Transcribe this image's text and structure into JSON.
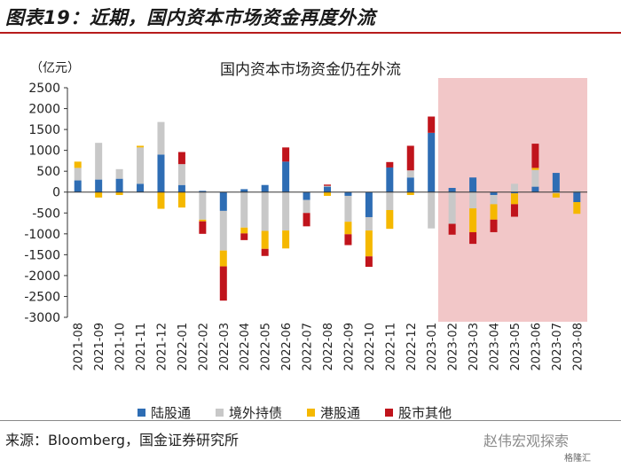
{
  "figure_title": "图表19：近期，国内资本市场资金再度外流",
  "source": "来源：Bloomberg，国金证券研究所",
  "watermark": "赵伟宏观探索",
  "watermark_sub": "格隆汇",
  "colors": {
    "陆股通": "#2e6db4",
    "境外持债": "#c8c8c8",
    "港股通": "#f5b800",
    "股市其他": "#c0141c",
    "highlight": "#f2c7c8",
    "title_rule": "#b71c1c"
  },
  "chart_data": {
    "type": "bar",
    "stacked": true,
    "title": "国内资本市场资金仍在外流",
    "ylabel": "（亿元）",
    "ylim": [
      -3000,
      2500
    ],
    "yticks": [
      2500,
      2000,
      1500,
      1000,
      500,
      0,
      -500,
      -1000,
      -1500,
      -2000,
      -2500,
      -3000
    ],
    "highlight_range": [
      "2023-02",
      "2023-08"
    ],
    "categories": [
      "2021-08",
      "2021-09",
      "2021-10",
      "2021-11",
      "2021-12",
      "2022-01",
      "2022-02",
      "2022-03",
      "2022-04",
      "2022-05",
      "2022-06",
      "2022-07",
      "2022-08",
      "2022-09",
      "2022-10",
      "2022-11",
      "2022-12",
      "2023-01",
      "2023-02",
      "2023-03",
      "2023-04",
      "2023-05",
      "2023-06",
      "2023-07",
      "2023-08"
    ],
    "series": [
      {
        "name": "陆股通",
        "values": [
          280,
          300,
          320,
          200,
          900,
          170,
          30,
          -450,
          70,
          170,
          730,
          -190,
          130,
          -90,
          -600,
          590,
          350,
          1420,
          100,
          350,
          -70,
          -30,
          130,
          460,
          -240
        ]
      },
      {
        "name": "境外持债",
        "values": [
          300,
          880,
          230,
          870,
          780,
          500,
          -660,
          -950,
          -850,
          -930,
          -920,
          -310,
          20,
          -620,
          -320,
          -430,
          170,
          -870,
          -760,
          -390,
          -220,
          200,
          400,
          -30,
          40
        ]
      },
      {
        "name": "港股通",
        "values": [
          150,
          -130,
          -70,
          40,
          -400,
          -370,
          -40,
          -380,
          -140,
          -430,
          -430,
          0,
          -90,
          -300,
          -620,
          -450,
          -70,
          0,
          0,
          -570,
          -370,
          -260,
          50,
          -100,
          -280
        ]
      },
      {
        "name": "股市其他",
        "values": [
          0,
          0,
          0,
          0,
          0,
          290,
          -300,
          -820,
          -160,
          -170,
          340,
          -320,
          30,
          -260,
          -250,
          130,
          590,
          390,
          -260,
          -280,
          -300,
          -300,
          580,
          0,
          0
        ]
      }
    ]
  }
}
